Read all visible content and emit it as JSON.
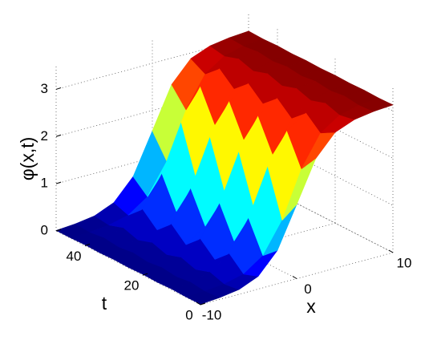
{
  "chart_data": {
    "type": "surface",
    "colormap": "jet",
    "grid": true,
    "xlabel": "x",
    "ylabel": "t",
    "zlabel": "φ(x,t)",
    "x": [
      -10,
      -8,
      -6,
      -4,
      -2,
      0,
      2,
      4,
      6,
      8,
      10
    ],
    "y": [
      0,
      5,
      10,
      15,
      20,
      25,
      30,
      35,
      40,
      45,
      50
    ],
    "z": [
      [
        0.01,
        0.04,
        0.1,
        0.27,
        0.71,
        1.57,
        2.44,
        2.88,
        3.04,
        3.1,
        3.13
      ],
      [
        0.01,
        0.02,
        0.06,
        0.16,
        0.44,
        1.08,
        2.06,
        2.71,
        2.98,
        3.08,
        3.12
      ],
      [
        0.02,
        0.06,
        0.16,
        0.44,
        1.08,
        2.06,
        2.71,
        2.98,
        3.08,
        3.12,
        3.13
      ],
      [
        0.01,
        0.02,
        0.06,
        0.16,
        0.44,
        1.08,
        2.06,
        2.71,
        2.98,
        3.08,
        3.12
      ],
      [
        0.02,
        0.06,
        0.16,
        0.44,
        1.08,
        2.06,
        2.71,
        2.98,
        3.08,
        3.12,
        3.13
      ],
      [
        0.01,
        0.02,
        0.06,
        0.16,
        0.44,
        1.08,
        2.06,
        2.71,
        2.98,
        3.08,
        3.12
      ],
      [
        0.02,
        0.06,
        0.16,
        0.44,
        1.08,
        2.06,
        2.71,
        2.98,
        3.08,
        3.12,
        3.13
      ],
      [
        0.01,
        0.02,
        0.06,
        0.16,
        0.44,
        1.08,
        2.06,
        2.71,
        2.98,
        3.08,
        3.12
      ],
      [
        0.02,
        0.06,
        0.16,
        0.44,
        1.08,
        2.06,
        2.71,
        2.98,
        3.08,
        3.12,
        3.13
      ],
      [
        0.01,
        0.02,
        0.06,
        0.16,
        0.44,
        1.08,
        2.06,
        2.71,
        2.98,
        3.08,
        3.12
      ],
      [
        0.01,
        0.04,
        0.1,
        0.27,
        0.71,
        1.57,
        2.44,
        2.88,
        3.04,
        3.1,
        3.13
      ]
    ],
    "xlim": [
      -10,
      10
    ],
    "xticks": [
      -10,
      0,
      10
    ],
    "ylim": [
      0,
      50
    ],
    "yticks": [
      0,
      20,
      40
    ],
    "zlim": [
      0,
      3.5
    ],
    "zticks": [
      0,
      1,
      2,
      3
    ]
  }
}
